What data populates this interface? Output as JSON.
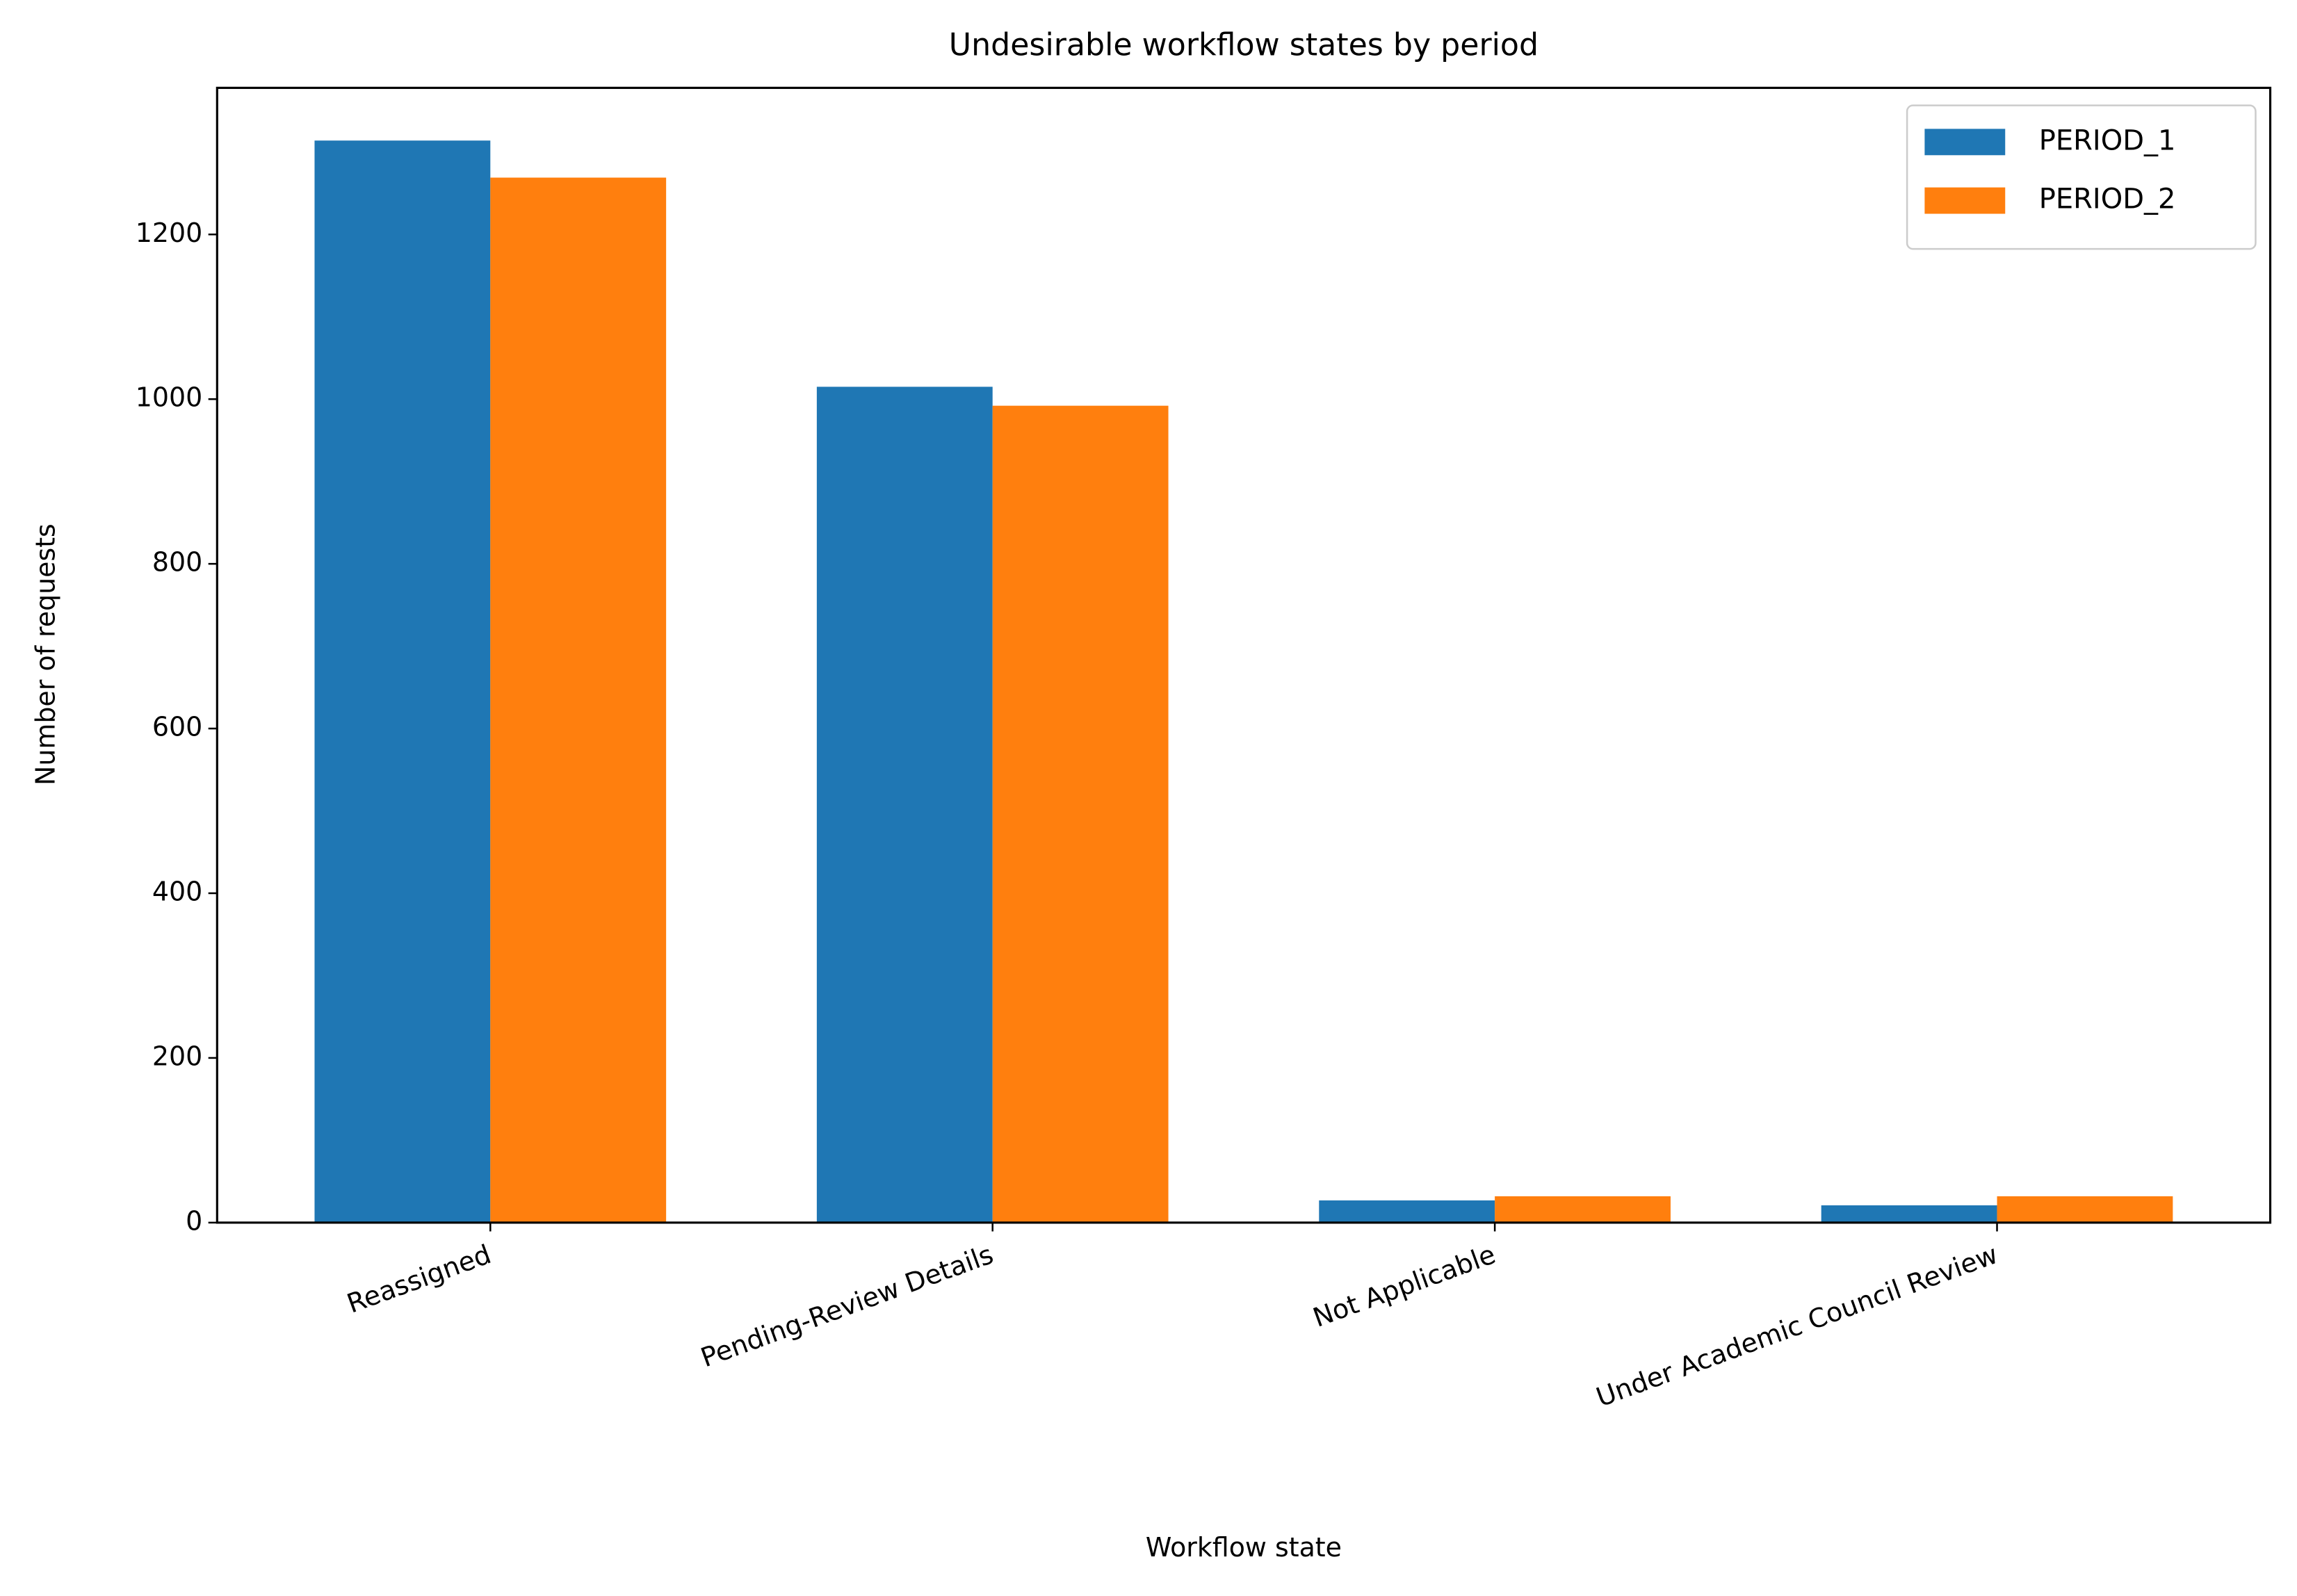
{
  "chart_data": {
    "type": "bar",
    "title": "Undesirable workflow states by period",
    "xlabel": "Workflow state",
    "ylabel": "Number of requests",
    "categories": [
      "Reassigned",
      "Pending-Review Details",
      "Not Applicable",
      "Under Academic Council Review"
    ],
    "series": [
      {
        "name": "PERIOD_1",
        "color": "#1f77b4",
        "values": [
          1314,
          1015,
          27,
          21
        ]
      },
      {
        "name": "PERIOD_2",
        "color": "#ff7f0e",
        "values": [
          1269,
          992,
          32,
          32
        ]
      }
    ],
    "ylim": [
      0,
      1378
    ],
    "yticks": [
      0,
      200,
      400,
      600,
      800,
      1000,
      1200
    ],
    "legend": "upper right",
    "grid": false
  }
}
